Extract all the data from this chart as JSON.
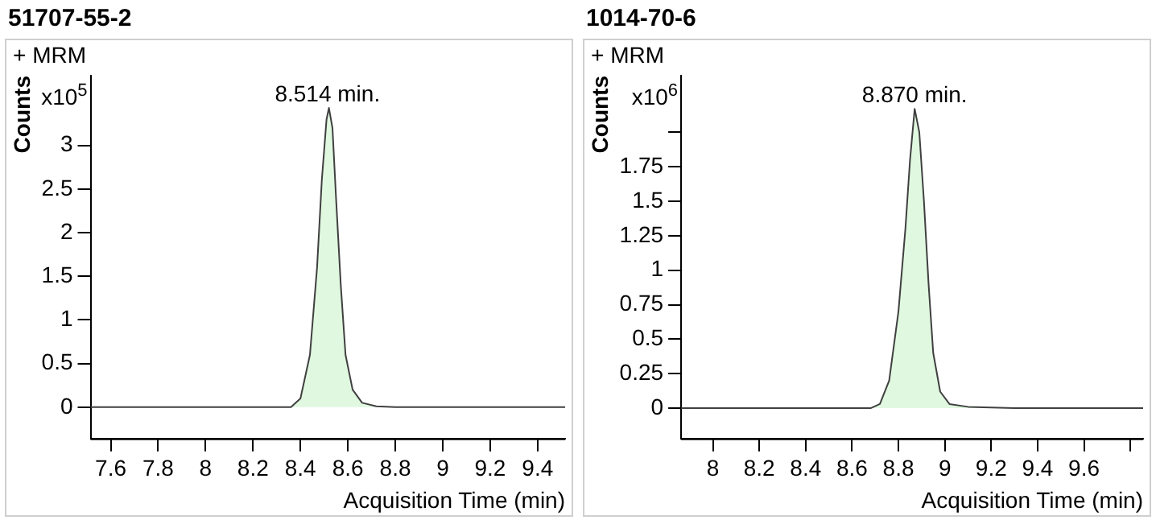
{
  "chart_data": [
    {
      "type": "area",
      "title": "51707-55-2",
      "xlabel": "Acquisition Time (min)",
      "ylabel": "Counts",
      "annotations": [
        "+ MRM",
        "x10$^{5}$",
        {
          "text": "8.514 min.",
          "x": 8.514,
          "y": 3.43
        }
      ],
      "series": [
        {
          "color": "#e0f8e0",
          "x": [
            7.515,
            8.0,
            8.36,
            8.4,
            8.44,
            8.47,
            8.49,
            8.51,
            8.52,
            8.535,
            8.55,
            8.57,
            8.59,
            8.62,
            8.66,
            8.72,
            8.8,
            9.0,
            9.516
          ],
          "values": [
            0,
            0,
            0,
            0.1,
            0.6,
            1.6,
            2.6,
            3.3,
            3.43,
            3.2,
            2.4,
            1.4,
            0.6,
            0.2,
            0.05,
            0.01,
            0,
            0,
            0
          ]
        }
      ],
      "xlim": [
        7.515,
        9.516
      ],
      "xticks": [
        7.6,
        7.8,
        8,
        8.2,
        8.4,
        8.6,
        8.8,
        9,
        9.2,
        9.4
      ],
      "ylim": [
        -0.36,
        3.8
      ],
      "yticks": [
        0,
        0.5,
        1,
        1.5,
        2,
        2.5,
        3
      ],
      "grid": false,
      "legend": false
    },
    {
      "type": "area",
      "title": "1014-70-6",
      "xlabel": "Acquisition Time (min)",
      "ylabel": "Counts",
      "annotations": [
        "+ MRM",
        "x10$^{6}$",
        {
          "text": "8.870 min.",
          "x": 8.87,
          "y": 2.17
        }
      ],
      "series": [
        {
          "color": "#e0f8e0",
          "x": [
            7.863,
            8.4,
            8.68,
            8.72,
            8.76,
            8.8,
            8.83,
            8.85,
            8.87,
            8.89,
            8.91,
            8.93,
            8.95,
            8.98,
            9.02,
            9.1,
            9.3,
            9.855
          ],
          "values": [
            0,
            0,
            0,
            0.03,
            0.2,
            0.7,
            1.3,
            1.8,
            2.17,
            2.0,
            1.5,
            0.9,
            0.4,
            0.12,
            0.03,
            0.01,
            0,
            0
          ]
        }
      ],
      "xlim": [
        7.863,
        9.855
      ],
      "xticks": [
        8,
        8.2,
        8.4,
        8.6,
        8.8,
        9,
        9.2,
        9.4,
        9.6,
        {
          "value": 9.8,
          "label": null
        }
      ],
      "ylim": [
        -0.22,
        2.41
      ],
      "yticks": [
        0,
        0.25,
        0.5,
        0.75,
        1,
        1.25,
        1.5,
        1.75,
        {
          "value": 2,
          "label": null
        }
      ],
      "grid": false,
      "legend": false
    }
  ]
}
